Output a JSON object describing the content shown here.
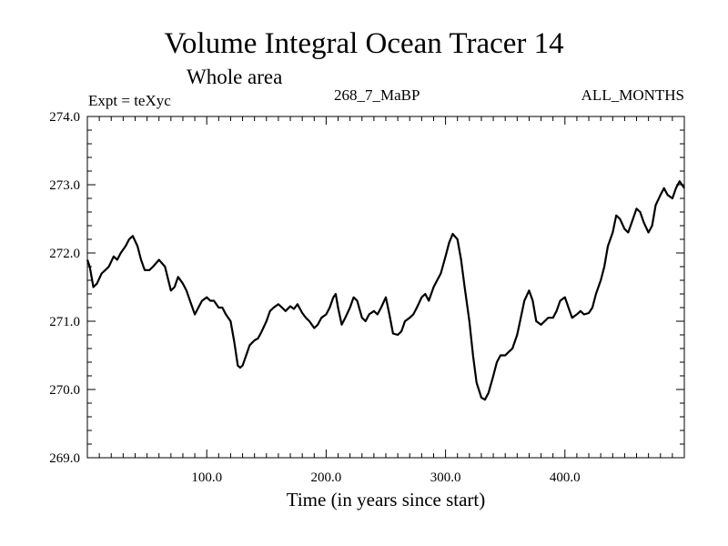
{
  "header": {
    "title": "Volume Integral Ocean Tracer 14",
    "subtitle": "Whole area",
    "expt": "Expt = teXyc",
    "run_id": "268_7_MaBP",
    "months": "ALL_MONTHS"
  },
  "chart_data": {
    "type": "line",
    "title": "Volume Integral Ocean Tracer 14",
    "xlabel": "Time (in years since start)",
    "ylabel": "",
    "xlim": [
      0,
      500
    ],
    "ylim": [
      269.0,
      274.0
    ],
    "xticks": [
      100,
      200,
      300,
      400
    ],
    "xtick_labels": [
      "100.0",
      "200.0",
      "300.0",
      "400.0"
    ],
    "yticks": [
      269.0,
      270.0,
      271.0,
      272.0,
      273.0,
      274.0
    ],
    "ytick_labels": [
      "269.0",
      "270.0",
      "271.0",
      "272.0",
      "273.0",
      "274.0"
    ],
    "grid": false,
    "series": [
      {
        "color": "#000000",
        "x": [
          0,
          2,
          5,
          8,
          12,
          15,
          18,
          22,
          25,
          28,
          32,
          35,
          38,
          42,
          45,
          48,
          52,
          55,
          60,
          65,
          70,
          73,
          76,
          80,
          83,
          86,
          90,
          93,
          96,
          100,
          103,
          106,
          110,
          113,
          116,
          120,
          123,
          126,
          128,
          130,
          133,
          136,
          140,
          143,
          146,
          150,
          153,
          156,
          160,
          163,
          166,
          170,
          173,
          176,
          180,
          183,
          186,
          190,
          193,
          196,
          200,
          203,
          206,
          208,
          210,
          213,
          216,
          220,
          223,
          226,
          230,
          233,
          236,
          240,
          243,
          246,
          250,
          253,
          256,
          260,
          263,
          266,
          270,
          273,
          276,
          280,
          283,
          286,
          290,
          293,
          296,
          300,
          303,
          306,
          310,
          313,
          316,
          320,
          323,
          326,
          330,
          333,
          336,
          340,
          343,
          346,
          350,
          353,
          356,
          360,
          363,
          366,
          370,
          373,
          376,
          380,
          383,
          386,
          390,
          393,
          396,
          400,
          403,
          406,
          410,
          413,
          416,
          420,
          423,
          426,
          430,
          433,
          436,
          440,
          443,
          446,
          450,
          453,
          456,
          460,
          463,
          466,
          470,
          473,
          476,
          480,
          483,
          486,
          490,
          493,
          496,
          500
        ],
        "y": [
          271.9,
          271.8,
          271.5,
          271.55,
          271.7,
          271.75,
          271.8,
          271.95,
          271.9,
          272.0,
          272.1,
          272.2,
          272.25,
          272.1,
          271.9,
          271.75,
          271.75,
          271.8,
          271.9,
          271.8,
          271.45,
          271.5,
          271.65,
          271.55,
          271.45,
          271.3,
          271.1,
          271.2,
          271.3,
          271.35,
          271.3,
          271.3,
          271.2,
          271.2,
          271.1,
          271.0,
          270.7,
          270.35,
          270.32,
          270.35,
          270.5,
          270.65,
          270.72,
          270.75,
          270.85,
          271.0,
          271.15,
          271.2,
          271.25,
          271.2,
          271.15,
          271.22,
          271.18,
          271.25,
          271.12,
          271.05,
          271.0,
          270.9,
          270.95,
          271.05,
          271.1,
          271.2,
          271.35,
          271.4,
          271.2,
          270.95,
          271.05,
          271.2,
          271.35,
          271.3,
          271.05,
          271.0,
          271.1,
          271.15,
          271.1,
          271.2,
          271.35,
          271.1,
          270.82,
          270.8,
          270.85,
          271.0,
          271.05,
          271.1,
          271.2,
          271.35,
          271.4,
          271.3,
          271.5,
          271.6,
          271.7,
          271.95,
          272.15,
          272.28,
          272.2,
          271.9,
          271.5,
          271.0,
          270.5,
          270.1,
          269.88,
          269.85,
          269.95,
          270.2,
          270.4,
          270.5,
          270.5,
          270.55,
          270.6,
          270.8,
          271.05,
          271.3,
          271.45,
          271.3,
          271.0,
          270.95,
          271.0,
          271.05,
          271.05,
          271.15,
          271.3,
          271.35,
          271.2,
          271.05,
          271.1,
          271.15,
          271.1,
          271.12,
          271.2,
          271.4,
          271.6,
          271.8,
          272.1,
          272.3,
          272.55,
          272.5,
          272.35,
          272.3,
          272.45,
          272.65,
          272.6,
          272.45,
          272.3,
          272.4,
          272.7,
          272.85,
          272.95,
          272.85,
          272.8,
          272.95,
          273.05,
          272.95
        ]
      }
    ]
  }
}
